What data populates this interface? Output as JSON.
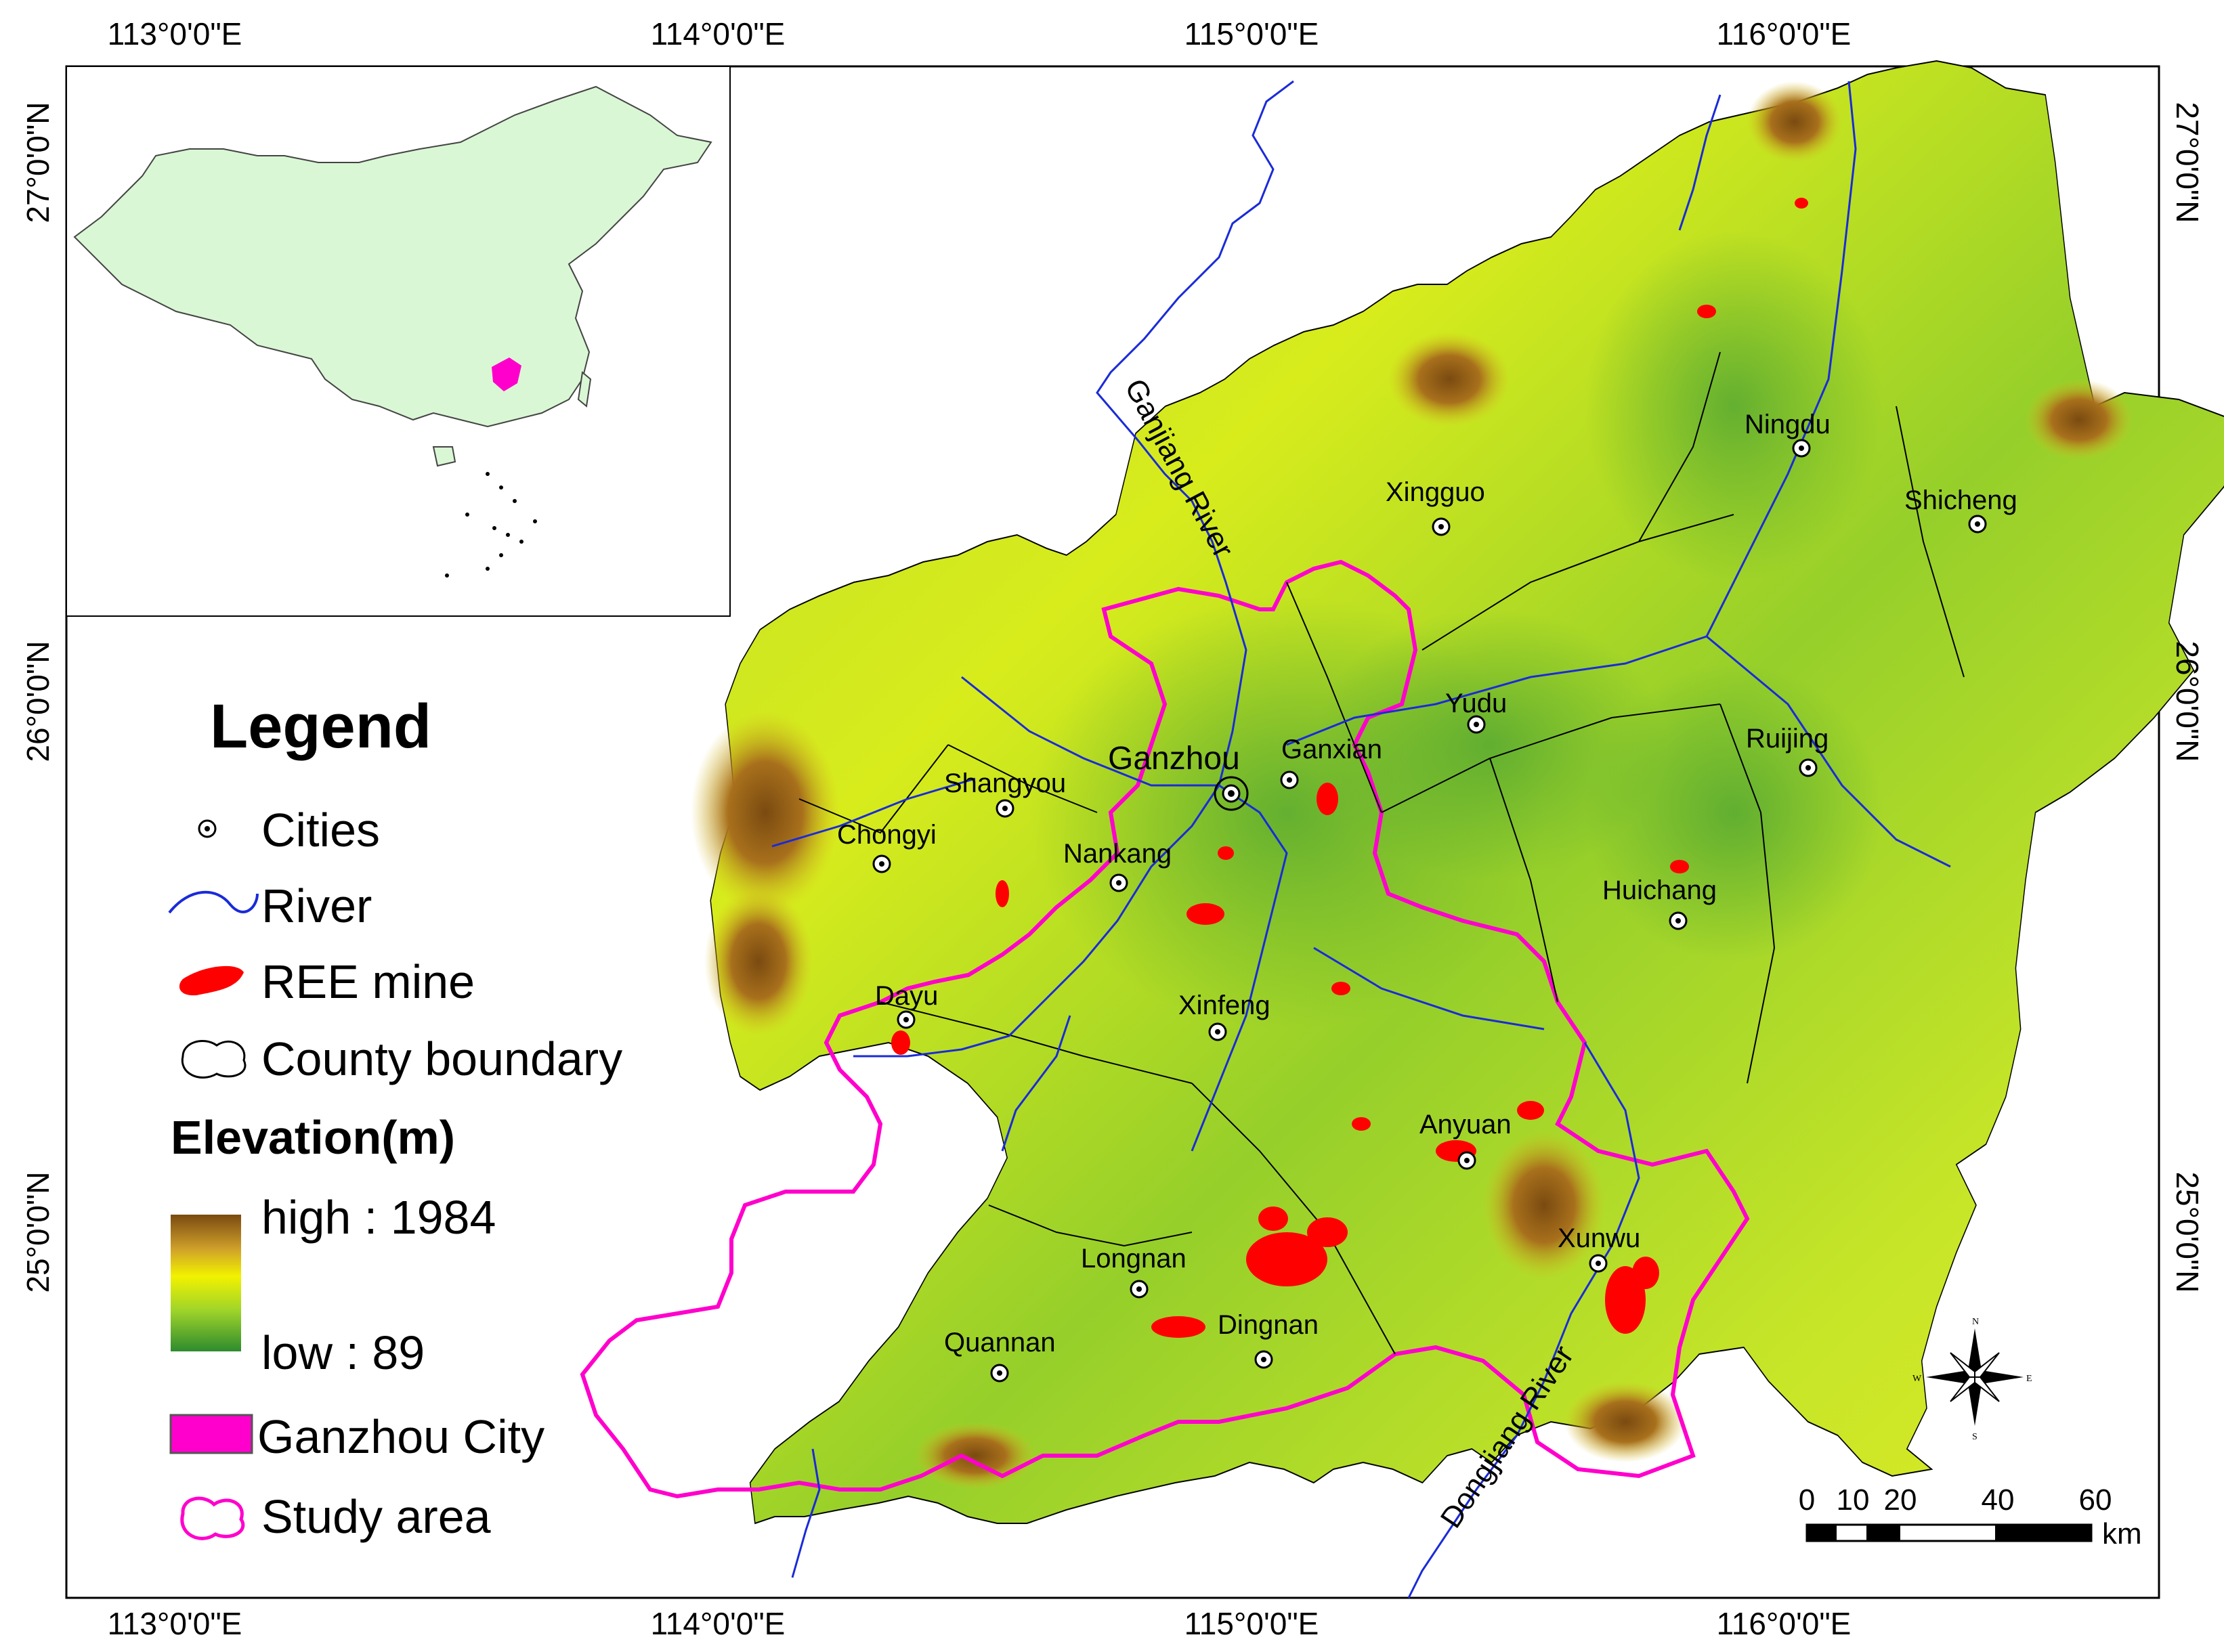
{
  "map": {
    "top_longitudes": [
      "113°0'0\"E",
      "114°0'0\"E",
      "115°0'0\"E",
      "116°0'0\"E"
    ],
    "bottom_longitudes": [
      "113°0'0\"E",
      "114°0'0\"E",
      "115°0'0\"E",
      "116°0'0\"E"
    ],
    "left_latitudes": [
      "27°0'0\"N",
      "26°0'0\"N",
      "25°0'0\"N"
    ],
    "right_latitudes": [
      "27°0'0\"N",
      "26°0'0\"N",
      "25°0'0\"N"
    ],
    "main_city": "Ganzhou",
    "cities": [
      "Ningdu",
      "Xingguo",
      "Shicheng",
      "Yudu",
      "Ruijing",
      "Ganxian",
      "Shangyou",
      "Chongyi",
      "Nankang",
      "Huichang",
      "Dayu",
      "Xinfeng",
      "Anyuan",
      "Xunwu",
      "Longnan",
      "Dingnan",
      "Quannan"
    ],
    "rivers": [
      "Ganjiang River",
      "Dongjiang River"
    ]
  },
  "legend": {
    "title": "Legend",
    "cities": "Cities",
    "river": "River",
    "ree_mine": "REE mine",
    "county_boundary": "County boundary",
    "elevation_title": "Elevation(m)",
    "high": "high : 1984",
    "low": "low : 89",
    "ganzhou_city": "Ganzhou City",
    "study_area": "Study area"
  },
  "scale_bar": {
    "labels": [
      "0",
      "10",
      "20",
      "40",
      "60"
    ],
    "unit": "km"
  },
  "compass": {
    "n": "N",
    "s": "S",
    "e": "E",
    "w": "W"
  },
  "colors": {
    "elev_high": "#7a4a10",
    "elev_mid": "#e8f000",
    "elev_low": "#2e8b2e",
    "river": "#1a2bd8",
    "ree_mine": "#ff0000",
    "study_area": "#ff00cc",
    "inset_fill": "#d9f7d4"
  }
}
